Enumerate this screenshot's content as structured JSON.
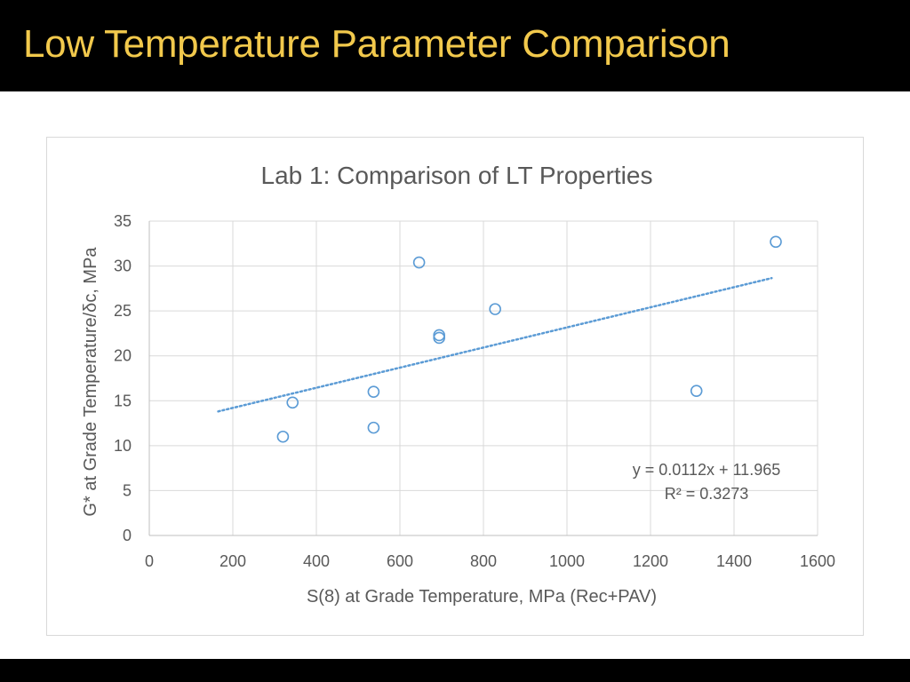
{
  "slide": {
    "title": "Low Temperature Parameter Comparison"
  },
  "colors": {
    "title": "#f2c94c",
    "background_bar": "#000000",
    "marker": "#5b9bd5",
    "trendline": "#5b9bd5",
    "grid": "#d9d9d9",
    "text": "#595959"
  },
  "chart_data": {
    "type": "scatter",
    "title": "Lab 1: Comparison of LT Properties",
    "xlabel": "S(8) at Grade Temperature, MPa (Rec+PAV)",
    "ylabel": "G* at Grade Temperature/δc, MPa",
    "xlim": [
      0,
      1600
    ],
    "ylim": [
      0,
      35
    ],
    "x_ticks": [
      0,
      200,
      400,
      600,
      800,
      1000,
      1200,
      1400,
      1600
    ],
    "y_ticks": [
      0,
      5,
      10,
      15,
      20,
      25,
      30,
      35
    ],
    "x_tick_labels": [
      "0",
      "200",
      "400",
      "600",
      "800",
      "1000",
      "1200",
      "1400",
      "1600"
    ],
    "y_tick_labels": [
      "0",
      "5",
      "10",
      "15",
      "20",
      "25",
      "30",
      "35"
    ],
    "grid": true,
    "series": [
      {
        "name": "Lab 1",
        "points": [
          {
            "x": 320,
            "y": 11.0
          },
          {
            "x": 343,
            "y": 14.8
          },
          {
            "x": 537,
            "y": 16.0
          },
          {
            "x": 537,
            "y": 12.0
          },
          {
            "x": 646,
            "y": 30.4
          },
          {
            "x": 694,
            "y": 22.3
          },
          {
            "x": 694,
            "y": 22.0
          },
          {
            "x": 828,
            "y": 25.2
          },
          {
            "x": 1310,
            "y": 16.1
          },
          {
            "x": 1500,
            "y": 32.7
          }
        ]
      }
    ],
    "trendline": {
      "type": "linear",
      "slope": 0.0112,
      "intercept": 11.965,
      "x_range": [
        165,
        1490
      ],
      "equation_label": "y = 0.0112x + 11.965",
      "r2_label": "R² = 0.3273"
    }
  }
}
